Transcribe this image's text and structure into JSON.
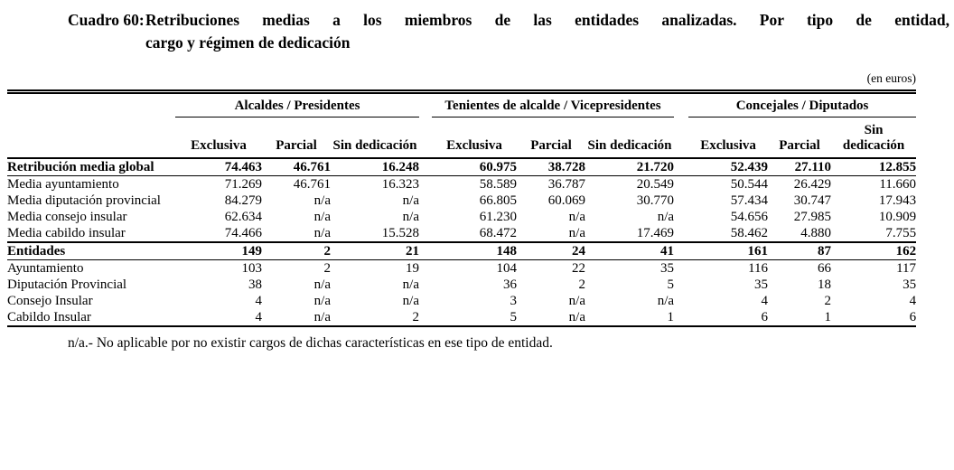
{
  "title": {
    "label": "Cuadro 60:",
    "line1": "Retribuciones medias a los miembros de las entidades analizadas. Por tipo de entidad,",
    "line2": "cargo y régimen de dedicación"
  },
  "currency_note": "(en euros)",
  "table": {
    "groups": [
      {
        "label": "Alcaldes / Presidentes"
      },
      {
        "label": "Tenientes de alcalde / Vicepresidentes"
      },
      {
        "label": "Concejales / Diputados"
      }
    ],
    "subheaders": [
      "Exclusiva",
      "Parcial",
      "Sin dedicación"
    ],
    "rows": [
      {
        "label": "Retribución media global",
        "bold": true,
        "values": [
          "74.463",
          "46.761",
          "16.248",
          "60.975",
          "38.728",
          "21.720",
          "52.439",
          "27.110",
          "12.855"
        ]
      },
      {
        "label": "Media ayuntamiento",
        "bold": false,
        "values": [
          "71.269",
          "46.761",
          "16.323",
          "58.589",
          "36.787",
          "20.549",
          "50.544",
          "26.429",
          "11.660"
        ]
      },
      {
        "label": "Media diputación provincial",
        "bold": false,
        "values": [
          "84.279",
          "n/a",
          "n/a",
          "66.805",
          "60.069",
          "30.770",
          "57.434",
          "30.747",
          "17.943"
        ]
      },
      {
        "label": "Media consejo insular",
        "bold": false,
        "values": [
          "62.634",
          "n/a",
          "n/a",
          "61.230",
          "n/a",
          "n/a",
          "54.656",
          "27.985",
          "10.909"
        ]
      },
      {
        "label": "Media cabildo insular",
        "bold": false,
        "values": [
          "74.466",
          "n/a",
          "15.528",
          "68.472",
          "n/a",
          "17.469",
          "58.462",
          "4.880",
          "7.755"
        ]
      },
      {
        "label": "Entidades",
        "bold": true,
        "values": [
          "149",
          "2",
          "21",
          "148",
          "24",
          "41",
          "161",
          "87",
          "162"
        ]
      },
      {
        "label": "Ayuntamiento",
        "bold": false,
        "values": [
          "103",
          "2",
          "19",
          "104",
          "22",
          "35",
          "116",
          "66",
          "117"
        ]
      },
      {
        "label": "Diputación Provincial",
        "bold": false,
        "values": [
          "38",
          "n/a",
          "n/a",
          "36",
          "2",
          "5",
          "35",
          "18",
          "35"
        ]
      },
      {
        "label": "Consejo Insular",
        "bold": false,
        "values": [
          "4",
          "n/a",
          "n/a",
          "3",
          "n/a",
          "n/a",
          "4",
          "2",
          "4"
        ]
      },
      {
        "label": "Cabildo Insular",
        "bold": false,
        "values": [
          "4",
          "n/a",
          "2",
          "5",
          "n/a",
          "1",
          "6",
          "1",
          "6"
        ]
      }
    ]
  },
  "footnote": "n/a.- No aplicable por no existir cargos de dichas características en ese tipo de entidad."
}
